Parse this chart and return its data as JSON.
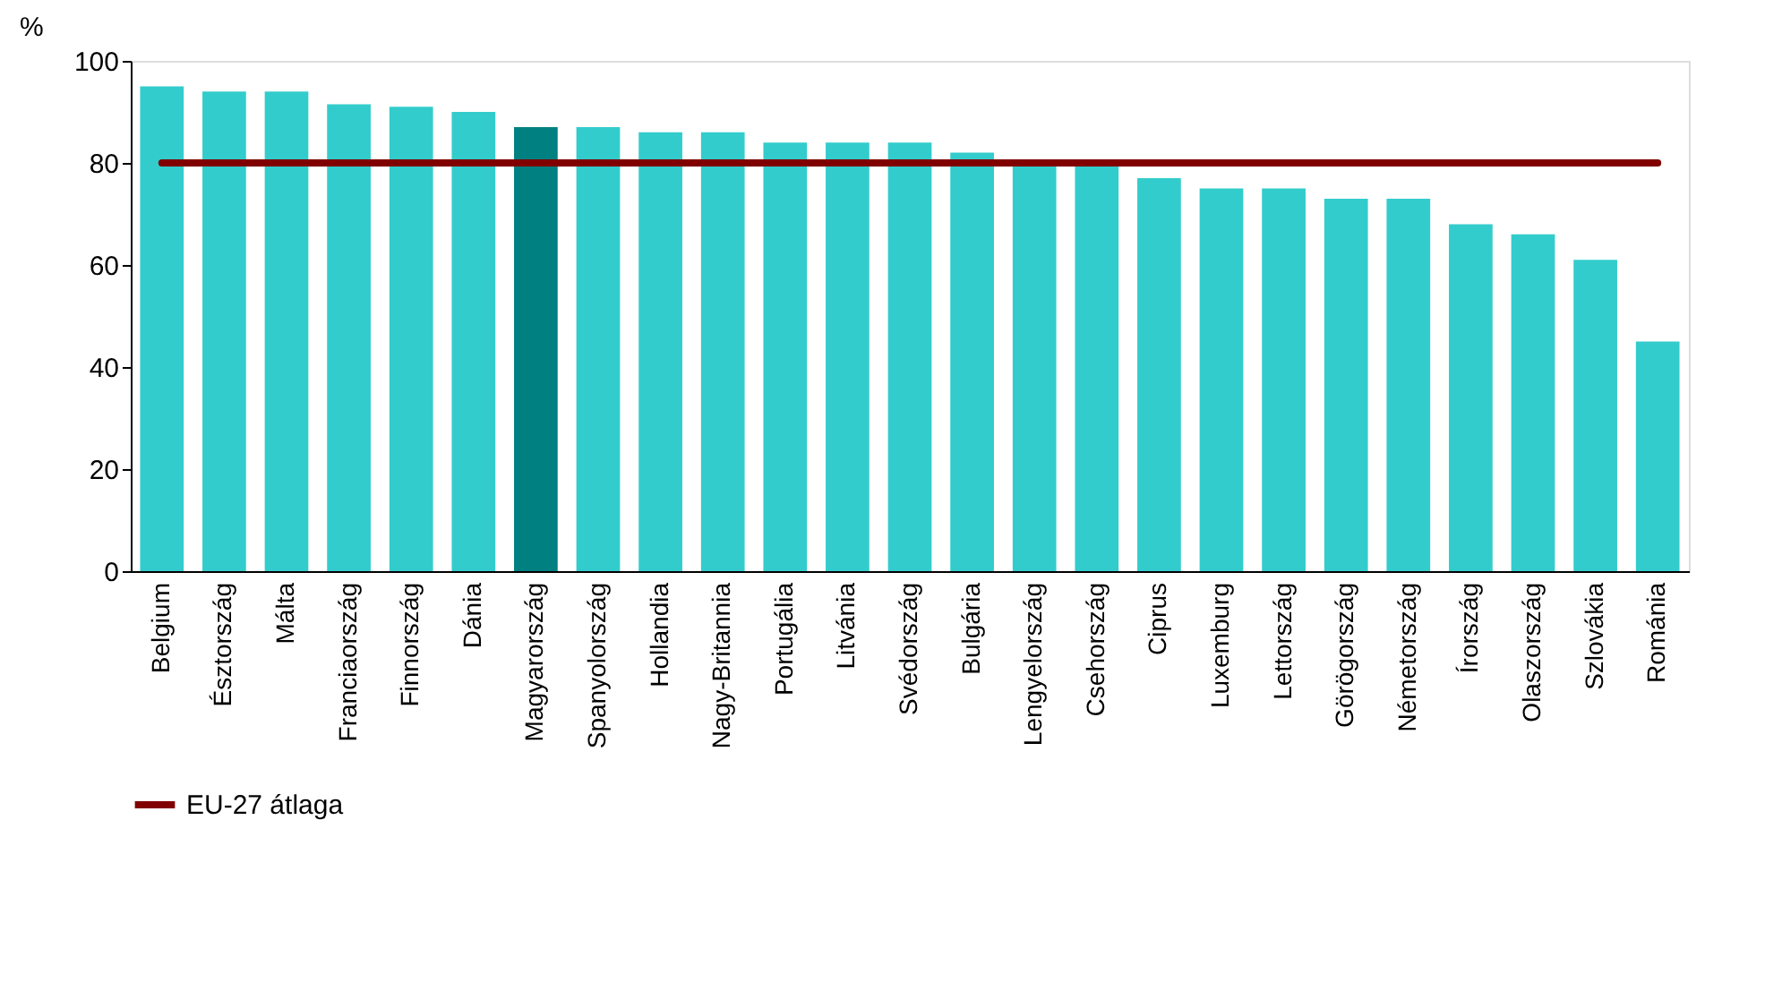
{
  "chart_data": {
    "type": "bar",
    "ylabel": "%",
    "categories": [
      "Belgium",
      "Észtország",
      "Málta",
      "Franciaország",
      "Finnország",
      "Dánia",
      "Magyarország",
      "Spanyolország",
      "Hollandia",
      "Nagy-Britannia",
      "Portugália",
      "Litvánia",
      "Svédország",
      "Bulgária",
      "Lengyelország",
      "Csehország",
      "Ciprus",
      "Luxemburg",
      "Lettország",
      "Görögország",
      "Németország",
      "Írország",
      "Olaszország",
      "Szlovákia",
      "Románia"
    ],
    "values": [
      95,
      94,
      94,
      91.5,
      91,
      90,
      87,
      87,
      86,
      86,
      84,
      84,
      84,
      82,
      80,
      79.5,
      77,
      75,
      75,
      73,
      73,
      68,
      66,
      61,
      45
    ],
    "colors": [
      "#33cccc",
      "#33cccc",
      "#33cccc",
      "#33cccc",
      "#33cccc",
      "#33cccc",
      "#008080",
      "#33cccc",
      "#33cccc",
      "#33cccc",
      "#33cccc",
      "#33cccc",
      "#33cccc",
      "#33cccc",
      "#33cccc",
      "#33cccc",
      "#33cccc",
      "#33cccc",
      "#33cccc",
      "#33cccc",
      "#33cccc",
      "#33cccc",
      "#33cccc",
      "#33cccc",
      "#33cccc"
    ],
    "ylim": [
      0,
      100
    ],
    "yticks": [
      0,
      20,
      40,
      60,
      80,
      100
    ],
    "grid": false,
    "legend": "bottom",
    "ref_lines": [
      {
        "axis": "y",
        "value": 80,
        "label": "EU-27 átlaga",
        "color": "#800000"
      }
    ]
  }
}
